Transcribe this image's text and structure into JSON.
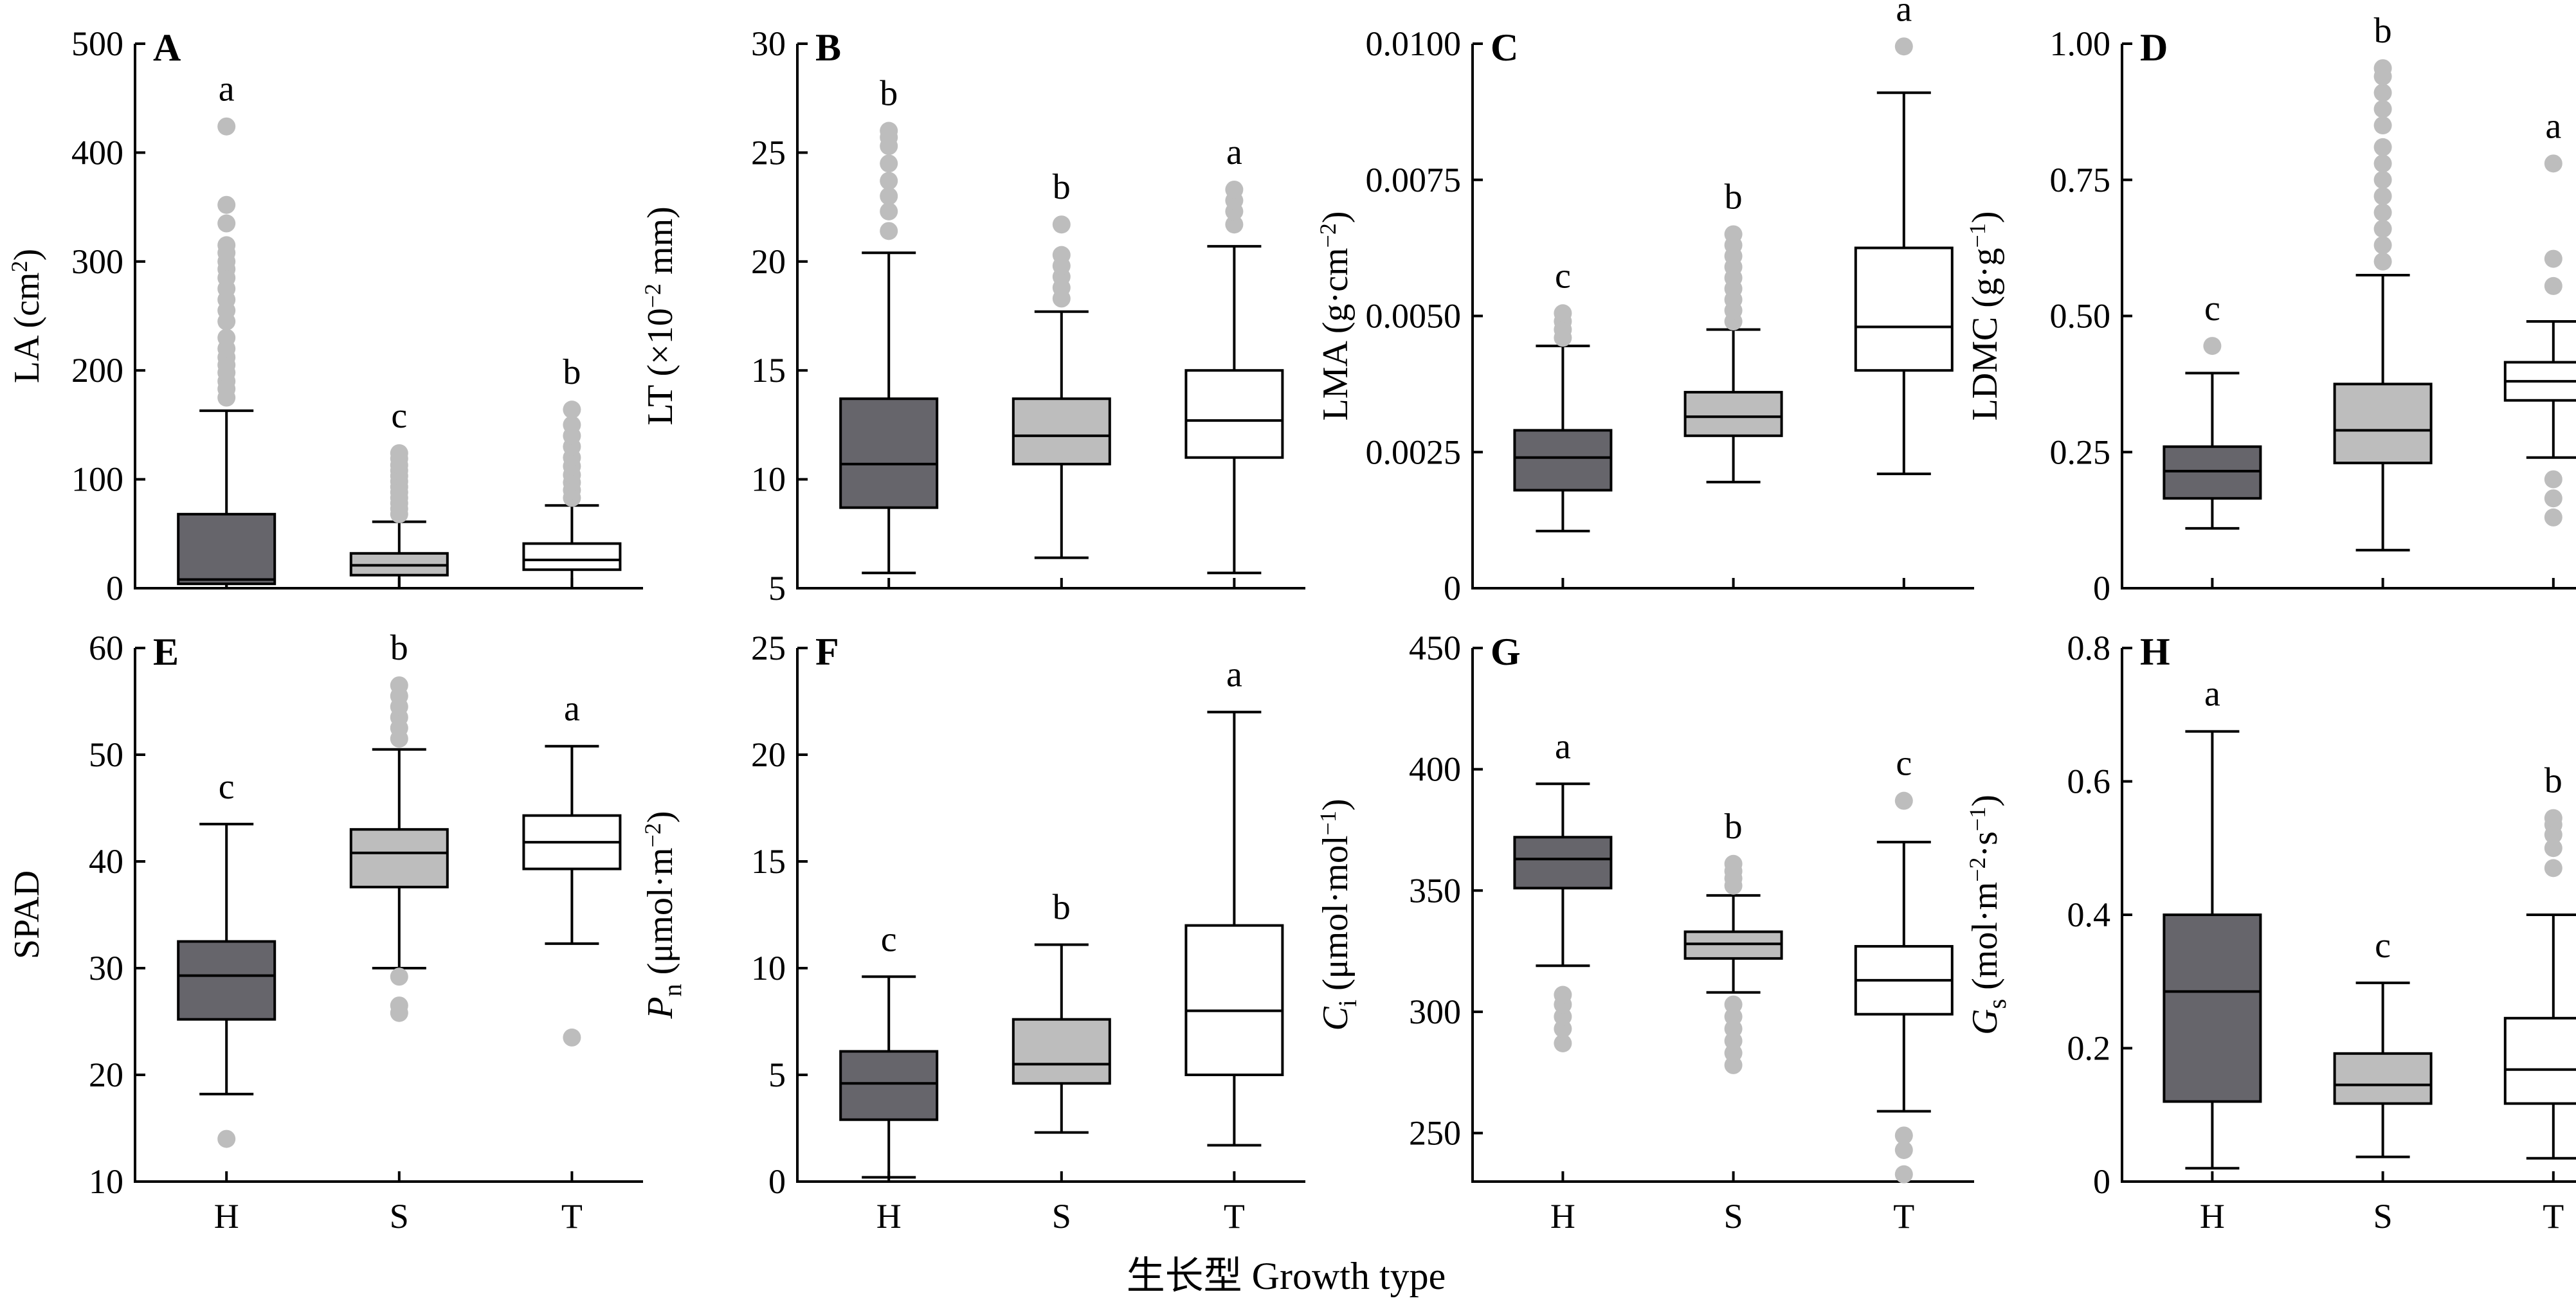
{
  "figure": {
    "xlabel": "生长型 Growth type"
  },
  "colors": {
    "H": "#66656b",
    "S": "#bdbdbd",
    "T": "#ffffff",
    "outlier": "#bdbdbd"
  },
  "chart_data": [
    {
      "type": "boxplot",
      "panel": "A",
      "ylabel": "LA (cm²)",
      "ylim": [
        0,
        500
      ],
      "yticks": [
        0,
        100,
        200,
        300,
        400,
        500
      ],
      "categories": [
        "H",
        "S",
        "T"
      ],
      "show_xticklabels": false,
      "boxes": [
        {
          "group": "H",
          "min": 0,
          "q1": 4,
          "median": 8,
          "q3": 68,
          "max": 163,
          "letter": "a",
          "outliers": [
            175,
            183,
            190,
            198,
            205,
            212,
            220,
            230,
            245,
            255,
            265,
            275,
            285,
            293,
            300,
            308,
            315,
            335,
            352,
            424
          ]
        },
        {
          "group": "S",
          "min": 0,
          "q1": 12,
          "median": 21,
          "q3": 32,
          "max": 61,
          "letter": "c",
          "outliers": [
            68,
            73,
            78,
            83,
            88,
            93,
            98,
            103,
            108,
            113,
            119,
            124
          ]
        },
        {
          "group": "T",
          "min": 0,
          "q1": 17,
          "median": 26,
          "q3": 41,
          "max": 76,
          "letter": "b",
          "outliers": [
            83,
            90,
            97,
            104,
            112,
            120,
            130,
            140,
            150,
            164
          ]
        }
      ]
    },
    {
      "type": "boxplot",
      "panel": "B",
      "ylabel": "LT (×10⁻² mm)",
      "ylim": [
        5,
        30
      ],
      "yticks": [
        5,
        10,
        15,
        20,
        25,
        30
      ],
      "categories": [
        "H",
        "S",
        "T"
      ],
      "show_xticklabels": false,
      "boxes": [
        {
          "group": "H",
          "min": 5.7,
          "q1": 8.7,
          "median": 10.7,
          "q3": 13.7,
          "max": 20.4,
          "letter": "b",
          "outliers": [
            21.4,
            22.3,
            23.0,
            23.7,
            24.5,
            25.3,
            25.7,
            26.0
          ]
        },
        {
          "group": "S",
          "min": 6.4,
          "q1": 10.7,
          "median": 12.0,
          "q3": 13.7,
          "max": 17.7,
          "letter": "b",
          "outliers": [
            18.3,
            18.8,
            19.3,
            19.8,
            20.3,
            21.7
          ]
        },
        {
          "group": "T",
          "min": 5.7,
          "q1": 11.0,
          "median": 12.7,
          "q3": 15.0,
          "max": 20.7,
          "letter": "a",
          "outliers": [
            21.7,
            22.3,
            22.8,
            23.3
          ]
        }
      ]
    },
    {
      "type": "boxplot",
      "panel": "C",
      "ylabel": "LMA (g·cm⁻²)",
      "ylim": [
        0,
        0.01
      ],
      "yticks": [
        0,
        0.0025,
        0.005,
        0.0075,
        0.01
      ],
      "ytick_labels": [
        "0",
        "0.0025",
        "0.0050",
        "0.0075",
        "0.0100"
      ],
      "categories": [
        "H",
        "S",
        "T"
      ],
      "show_xticklabels": false,
      "boxes": [
        {
          "group": "H",
          "min": 0.00105,
          "q1": 0.0018,
          "median": 0.0024,
          "q3": 0.0029,
          "max": 0.00445,
          "letter": "c",
          "outliers": [
            0.0046,
            0.00475,
            0.0049,
            0.00505
          ]
        },
        {
          "group": "S",
          "min": 0.00195,
          "q1": 0.0028,
          "median": 0.00315,
          "q3": 0.0036,
          "max": 0.00475,
          "letter": "b",
          "outliers": [
            0.0049,
            0.0051,
            0.0053,
            0.0055,
            0.0057,
            0.0059,
            0.0061,
            0.0063,
            0.0065
          ]
        },
        {
          "group": "T",
          "min": 0.0021,
          "q1": 0.004,
          "median": 0.0048,
          "q3": 0.00625,
          "max": 0.0091,
          "letter": "a",
          "outliers": [
            0.00995
          ]
        }
      ]
    },
    {
      "type": "boxplot",
      "panel": "D",
      "ylabel": "LDMC (g·g⁻¹)",
      "ylim": [
        0,
        1.0
      ],
      "yticks": [
        0,
        0.25,
        0.5,
        0.75,
        1.0
      ],
      "ytick_labels": [
        "0",
        "0.25",
        "0.50",
        "0.75",
        "1.00"
      ],
      "categories": [
        "H",
        "S",
        "T"
      ],
      "show_xticklabels": false,
      "boxes": [
        {
          "group": "H",
          "min": 0.11,
          "q1": 0.165,
          "median": 0.215,
          "q3": 0.26,
          "max": 0.395,
          "letter": "c",
          "outliers": [
            0.445
          ]
        },
        {
          "group": "S",
          "min": 0.07,
          "q1": 0.23,
          "median": 0.29,
          "q3": 0.375,
          "max": 0.575,
          "letter": "b",
          "outliers": [
            0.6,
            0.63,
            0.66,
            0.69,
            0.72,
            0.75,
            0.78,
            0.81,
            0.85,
            0.88,
            0.91,
            0.94,
            0.955
          ]
        },
        {
          "group": "T",
          "min": 0.24,
          "q1": 0.345,
          "median": 0.38,
          "q3": 0.415,
          "max": 0.49,
          "letter": "a",
          "outliers": [
            0.13,
            0.165,
            0.2,
            0.555,
            0.605,
            0.78
          ]
        }
      ]
    },
    {
      "type": "boxplot",
      "panel": "E",
      "ylabel": "SPAD",
      "ylim": [
        10,
        60
      ],
      "yticks": [
        10,
        20,
        30,
        40,
        50,
        60
      ],
      "categories": [
        "H",
        "S",
        "T"
      ],
      "show_xticklabels": true,
      "boxes": [
        {
          "group": "H",
          "min": 18.2,
          "q1": 25.2,
          "median": 29.3,
          "q3": 32.5,
          "max": 43.5,
          "letter": "c",
          "outliers": [
            14.0
          ]
        },
        {
          "group": "S",
          "min": 30.0,
          "q1": 37.6,
          "median": 40.8,
          "q3": 43.0,
          "max": 50.5,
          "letter": "b",
          "outliers": [
            25.8,
            26.5,
            29.2,
            51.5,
            52.5,
            53.5,
            54.5,
            55.5,
            56.5
          ]
        },
        {
          "group": "T",
          "min": 32.3,
          "q1": 39.3,
          "median": 41.8,
          "q3": 44.3,
          "max": 50.8,
          "letter": "a",
          "outliers": [
            23.5
          ]
        }
      ]
    },
    {
      "type": "boxplot",
      "panel": "F",
      "ylabel": "Pn (μmol·m⁻²)",
      "ylim": [
        0,
        25
      ],
      "yticks": [
        0,
        5,
        10,
        15,
        20,
        25
      ],
      "categories": [
        "H",
        "S",
        "T"
      ],
      "show_xticklabels": true,
      "boxes": [
        {
          "group": "H",
          "min": 0.2,
          "q1": 2.9,
          "median": 4.6,
          "q3": 6.1,
          "max": 9.6,
          "letter": "c",
          "outliers": []
        },
        {
          "group": "S",
          "min": 2.3,
          "q1": 4.6,
          "median": 5.5,
          "q3": 7.6,
          "max": 11.1,
          "letter": "b",
          "outliers": []
        },
        {
          "group": "T",
          "min": 1.7,
          "q1": 5.0,
          "median": 8.0,
          "q3": 12.0,
          "max": 22.0,
          "letter": "a",
          "outliers": []
        }
      ]
    },
    {
      "type": "boxplot",
      "panel": "G",
      "ylabel": "Ci (μmol·mol⁻¹)",
      "ylim": [
        230,
        450
      ],
      "yticks": [
        250,
        300,
        350,
        400,
        450
      ],
      "categories": [
        "H",
        "S",
        "T"
      ],
      "show_xticklabels": true,
      "boxes": [
        {
          "group": "H",
          "min": 319,
          "q1": 351,
          "median": 363,
          "q3": 372,
          "max": 394,
          "letter": "a",
          "outliers": [
            287,
            293,
            298,
            303,
            307
          ]
        },
        {
          "group": "S",
          "min": 308,
          "q1": 322,
          "median": 328,
          "q3": 333,
          "max": 348,
          "letter": "b",
          "outliers": [
            278,
            283,
            288,
            293,
            298,
            303,
            352,
            355,
            358,
            361
          ]
        },
        {
          "group": "T",
          "min": 259,
          "q1": 299,
          "median": 313,
          "q3": 327,
          "max": 370,
          "letter": "c",
          "outliers": [
            233,
            243,
            249,
            387
          ]
        }
      ]
    },
    {
      "type": "boxplot",
      "panel": "H",
      "ylabel": "Gs (mol·m⁻²·s⁻¹)",
      "ylim": [
        0,
        0.8
      ],
      "yticks": [
        0,
        0.2,
        0.4,
        0.6,
        0.8
      ],
      "categories": [
        "H",
        "S",
        "T"
      ],
      "show_xticklabels": true,
      "boxes": [
        {
          "group": "H",
          "min": 0.02,
          "q1": 0.12,
          "median": 0.285,
          "q3": 0.4,
          "max": 0.675,
          "letter": "a",
          "outliers": []
        },
        {
          "group": "S",
          "min": 0.037,
          "q1": 0.117,
          "median": 0.145,
          "q3": 0.192,
          "max": 0.298,
          "letter": "c",
          "outliers": []
        },
        {
          "group": "T",
          "min": 0.035,
          "q1": 0.117,
          "median": 0.168,
          "q3": 0.245,
          "max": 0.4,
          "letter": "b",
          "outliers": [
            0.47,
            0.5,
            0.52,
            0.535,
            0.545
          ]
        }
      ]
    }
  ]
}
